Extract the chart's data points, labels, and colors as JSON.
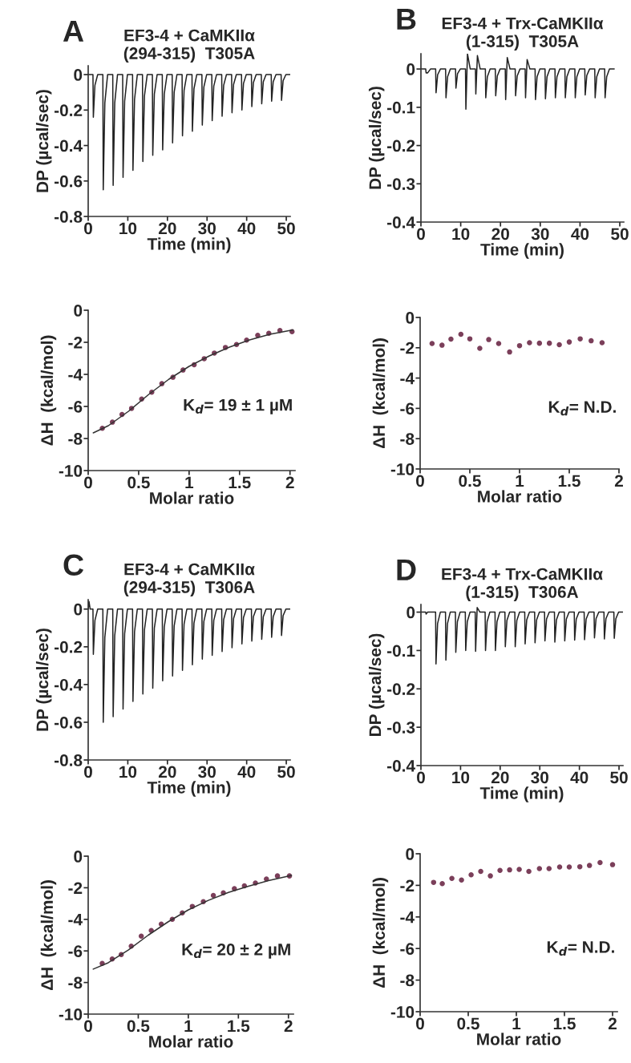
{
  "chart_data": [
    {
      "type": "line",
      "title": "EF3-4 + CaMKIIα\n(294-315)  T305A",
      "xlabel": "Time (min)",
      "ylabel": "DP (µcal/sec)",
      "annotations": [
        "A"
      ],
      "xlim": [
        0,
        51
      ],
      "ylim": [
        -0.8,
        0.05
      ],
      "xticks": [
        0,
        10,
        20,
        30,
        40,
        50
      ],
      "yticks": [
        0,
        -0.2,
        -0.4,
        -0.6,
        -0.8
      ],
      "series": [
        {
          "color": "#222222",
          "x": [
            0,
            1.2,
            1.3,
            1.7,
            2.4,
            3.7,
            3.8,
            4.2,
            4.9,
            6.2,
            6.3,
            6.7,
            7.4,
            8.7,
            8.8,
            9.2,
            9.9,
            11.2,
            11.3,
            11.7,
            12.4,
            13.7,
            13.8,
            14.2,
            14.9,
            16.2,
            16.3,
            16.7,
            17.4,
            18.7,
            18.8,
            19.2,
            19.9,
            21.2,
            21.3,
            21.7,
            22.4,
            23.7,
            23.8,
            24.2,
            24.9,
            26.2,
            26.3,
            26.7,
            27.4,
            28.7,
            28.8,
            29.2,
            29.9,
            31.2,
            31.3,
            31.7,
            32.4,
            33.7,
            33.8,
            34.2,
            34.9,
            36.2,
            36.3,
            36.7,
            37.4,
            38.7,
            38.8,
            39.2,
            39.9,
            41.2,
            41.3,
            41.7,
            42.4,
            43.7,
            43.8,
            44.2,
            44.9,
            46.2,
            46.3,
            46.7,
            47.4,
            48.7,
            48.8,
            49.2,
            49.9,
            51
          ],
          "values": [
            0,
            0,
            -0.24,
            -0.06,
            0,
            0,
            -0.65,
            -0.16,
            0,
            0,
            -0.625,
            -0.16,
            0,
            0,
            -0.58,
            -0.15,
            0,
            0,
            -0.54,
            -0.14,
            0,
            0,
            -0.49,
            -0.12,
            0,
            0,
            -0.455,
            -0.11,
            0,
            0,
            -0.425,
            -0.11,
            0,
            0,
            -0.385,
            -0.1,
            0,
            0,
            -0.345,
            -0.09,
            0,
            0,
            -0.32,
            -0.08,
            0,
            0,
            -0.285,
            -0.07,
            0,
            0,
            -0.26,
            -0.065,
            0,
            0,
            -0.235,
            -0.06,
            0,
            0,
            -0.215,
            -0.055,
            0,
            0,
            -0.2,
            -0.05,
            0,
            0,
            -0.18,
            -0.045,
            0,
            0,
            -0.165,
            -0.04,
            0,
            0,
            -0.15,
            -0.04,
            0,
            0,
            -0.145,
            -0.035,
            0,
            0
          ]
        }
      ]
    },
    {
      "type": "line",
      "title": "EF3-4 + Trx-CaMKIIα\n(1-315)  T305A",
      "xlabel": "Time (min)",
      "ylabel": "DP (µcal/sec)",
      "annotations": [
        "B"
      ],
      "xlim": [
        0,
        51
      ],
      "ylim": [
        -0.4,
        0.04
      ],
      "xticks": [
        0,
        10,
        20,
        30,
        40,
        50
      ],
      "yticks": [
        0,
        -0.1,
        -0.2,
        -0.3,
        -0.4
      ],
      "series": [
        {
          "color": "#222222",
          "x": [
            0,
            1.2,
            1.3,
            1.7,
            2.4,
            3.7,
            3.8,
            4.2,
            4.9,
            6.2,
            6.3,
            6.7,
            7.4,
            8.7,
            8.8,
            9.2,
            9.9,
            11.2,
            11.3,
            11.7,
            12.4,
            13.7,
            13.8,
            14.2,
            14.9,
            16.2,
            16.3,
            16.7,
            17.4,
            18.7,
            18.8,
            19.2,
            19.9,
            21.2,
            21.3,
            21.7,
            22.4,
            23.7,
            23.8,
            24.2,
            24.9,
            26.2,
            26.3,
            26.7,
            27.4,
            28.7,
            28.8,
            29.2,
            29.9,
            31.2,
            31.3,
            31.7,
            32.4,
            33.7,
            33.8,
            34.2,
            34.9,
            36.2,
            36.3,
            36.7,
            37.4,
            38.7,
            38.8,
            39.2,
            39.9,
            41.2,
            41.3,
            41.7,
            42.4,
            43.7,
            43.8,
            44.2,
            44.9,
            46.2,
            46.3,
            46.7,
            47.4,
            48.6
          ],
          "values": [
            0,
            0,
            -0.01,
            -0.01,
            0,
            0,
            -0.062,
            -0.015,
            0,
            0,
            -0.075,
            -0.02,
            0,
            0,
            -0.05,
            -0.012,
            0,
            0,
            -0.105,
            0.04,
            0,
            0,
            -0.065,
            0.035,
            0,
            0,
            -0.075,
            -0.02,
            0,
            0,
            -0.07,
            -0.018,
            0,
            0,
            -0.08,
            0.03,
            0,
            0,
            -0.07,
            -0.018,
            0,
            0,
            -0.075,
            0.025,
            0,
            0,
            -0.08,
            -0.02,
            0,
            0,
            -0.078,
            -0.02,
            0,
            0,
            -0.075,
            -0.02,
            0,
            0,
            -0.075,
            -0.02,
            0,
            0,
            -0.075,
            -0.02,
            0,
            0,
            -0.068,
            -0.017,
            0,
            0,
            -0.075,
            -0.02,
            0,
            0,
            -0.075,
            -0.02,
            0,
            0
          ]
        }
      ]
    },
    {
      "type": "line",
      "xlabel": "Molar ratio",
      "ylabel": "ΔH  (kcal/mol)",
      "annotations": [
        "K$_{d}$= 19 ± 1 µM"
      ],
      "xlim": [
        0,
        2.05
      ],
      "ylim": [
        -10,
        0
      ],
      "xticks": [
        0,
        0.5,
        1,
        1.5,
        2
      ],
      "yticks": [
        0,
        -2,
        -4,
        -6,
        -8,
        -10
      ],
      "series": [
        {
          "type": "scatter",
          "marker": "circle",
          "color": "#7b3f5a",
          "x": [
            0.14,
            0.24,
            0.335,
            0.43,
            0.53,
            0.63,
            0.73,
            0.84,
            0.94,
            1.05,
            1.15,
            1.25,
            1.36,
            1.47,
            1.57,
            1.68,
            1.79,
            1.9,
            2.02
          ],
          "values": [
            -7.36,
            -6.98,
            -6.5,
            -6.12,
            -5.54,
            -5.11,
            -4.58,
            -4.18,
            -3.73,
            -3.4,
            -3.02,
            -2.67,
            -2.32,
            -2.14,
            -1.86,
            -1.56,
            -1.44,
            -1.26,
            -1.34
          ]
        },
        {
          "type": "line",
          "color": "#333333",
          "x": [
            0.05,
            0.2,
            0.4,
            0.6,
            0.8,
            1.0,
            1.2,
            1.4,
            1.6,
            1.8,
            2.03
          ],
          "values": [
            -7.65,
            -7.2,
            -6.3,
            -5.25,
            -4.3,
            -3.5,
            -2.85,
            -2.3,
            -1.85,
            -1.5,
            -1.22
          ]
        }
      ]
    },
    {
      "type": "scatter",
      "xlabel": "Molar ratio",
      "ylabel": "ΔH  (kcal/mol)",
      "annotations": [
        "K$_{d}$= N.D."
      ],
      "xlim": [
        0,
        2
      ],
      "ylim": [
        -10,
        0
      ],
      "xticks": [
        0,
        0.5,
        1,
        1.5,
        2
      ],
      "yticks": [
        0,
        -2,
        -4,
        -6,
        -8,
        -10
      ],
      "marker": "circle",
      "series": [
        {
          "color": "#7b3f5a",
          "x": [
            0.12,
            0.22,
            0.31,
            0.41,
            0.5,
            0.6,
            0.69,
            0.79,
            0.9,
            1.0,
            1.1,
            1.2,
            1.3,
            1.4,
            1.5,
            1.61,
            1.72,
            1.83
          ],
          "values": [
            -1.72,
            -1.83,
            -1.43,
            -1.11,
            -1.41,
            -2.04,
            -1.46,
            -1.72,
            -2.28,
            -1.86,
            -1.67,
            -1.7,
            -1.7,
            -1.8,
            -1.62,
            -1.41,
            -1.54,
            -1.67
          ]
        }
      ]
    },
    {
      "type": "line",
      "title": "EF3-4 + CaMKIIα\n(294-315)  T306A",
      "xlabel": "Time (min)",
      "ylabel": "DP (µcal/sec)",
      "annotations": [
        "C"
      ],
      "xlim": [
        0,
        51
      ],
      "ylim": [
        -0.8,
        0.05
      ],
      "xticks": [
        0,
        10,
        20,
        30,
        40,
        50
      ],
      "yticks": [
        0,
        -0.2,
        -0.4,
        -0.6,
        -0.8
      ],
      "series": [
        {
          "color": "#222222",
          "x": [
            0,
            0.2,
            0.5,
            1.2,
            1.3,
            1.7,
            2.4,
            3.7,
            3.8,
            4.2,
            4.9,
            6.2,
            6.3,
            6.7,
            7.4,
            8.7,
            8.8,
            9.2,
            9.9,
            11.2,
            11.3,
            11.7,
            12.4,
            13.7,
            13.8,
            14.2,
            14.9,
            16.2,
            16.3,
            16.7,
            17.4,
            18.7,
            18.8,
            19.2,
            19.9,
            21.2,
            21.3,
            21.7,
            22.4,
            23.7,
            23.8,
            24.2,
            24.9,
            26.2,
            26.3,
            26.7,
            27.4,
            28.7,
            28.8,
            29.2,
            29.9,
            31.2,
            31.3,
            31.7,
            32.4,
            33.7,
            33.8,
            34.2,
            34.9,
            36.2,
            36.3,
            36.7,
            37.4,
            38.7,
            38.8,
            39.2,
            39.9,
            41.2,
            41.3,
            41.7,
            42.4,
            43.7,
            43.8,
            44.2,
            44.9,
            46.2,
            46.3,
            46.7,
            47.4,
            48.7,
            48.8,
            49.2,
            49.9,
            51
          ],
          "values": [
            0,
            0.04,
            0,
            0,
            -0.24,
            -0.06,
            0,
            0,
            -0.6,
            -0.15,
            0,
            0,
            -0.57,
            -0.14,
            0,
            0,
            -0.53,
            -0.13,
            0,
            0,
            -0.49,
            -0.12,
            0,
            0,
            -0.45,
            -0.11,
            0,
            0,
            -0.42,
            -0.1,
            0,
            0,
            -0.38,
            -0.095,
            0,
            0,
            -0.355,
            -0.09,
            0,
            0,
            -0.325,
            -0.08,
            0,
            0,
            -0.295,
            -0.075,
            0,
            0,
            -0.265,
            -0.065,
            0,
            0,
            -0.245,
            -0.06,
            0,
            0,
            -0.225,
            -0.055,
            0,
            0,
            -0.205,
            -0.05,
            0,
            0,
            -0.185,
            -0.045,
            0,
            0,
            -0.17,
            -0.04,
            0,
            0,
            -0.16,
            -0.04,
            0,
            0,
            -0.15,
            -0.04,
            0,
            0,
            -0.14,
            -0.035,
            0,
            0
          ]
        }
      ]
    },
    {
      "type": "line",
      "title": "EF3-4 + Trx-CaMKIIα\n(1-315)  T306A",
      "xlabel": "Time (min)",
      "ylabel": "DP (µcal/sec)",
      "annotations": [
        "D"
      ],
      "xlim": [
        0,
        51
      ],
      "ylim": [
        -0.4,
        0.02
      ],
      "xticks": [
        0,
        10,
        20,
        30,
        40,
        50
      ],
      "yticks": [
        0,
        -0.1,
        -0.2,
        -0.3,
        -0.4
      ],
      "series": [
        {
          "color": "#222222",
          "x": [
            0,
            1.2,
            1.3,
            1.7,
            2.4,
            3.7,
            3.8,
            4.2,
            4.9,
            6.2,
            6.3,
            6.7,
            7.4,
            8.7,
            8.8,
            9.2,
            9.9,
            11.2,
            11.3,
            11.7,
            12.4,
            13.7,
            13.8,
            14.2,
            14.9,
            16.2,
            16.3,
            16.7,
            17.4,
            18.7,
            18.8,
            19.2,
            19.9,
            21.2,
            21.3,
            21.7,
            22.4,
            23.7,
            23.8,
            24.2,
            24.9,
            26.2,
            26.3,
            26.7,
            27.4,
            28.7,
            28.8,
            29.2,
            29.9,
            31.2,
            31.3,
            31.7,
            32.4,
            33.7,
            33.8,
            34.2,
            34.9,
            36.2,
            36.3,
            36.7,
            37.4,
            38.7,
            38.8,
            39.2,
            39.9,
            41.2,
            41.3,
            41.7,
            42.4,
            43.7,
            43.8,
            44.2,
            44.9,
            46.2,
            46.3,
            46.7,
            47.4,
            48.7,
            48.8,
            49.2,
            49.9,
            51
          ],
          "values": [
            0,
            0,
            -0.005,
            0,
            0,
            0,
            -0.135,
            -0.03,
            0,
            0,
            -0.125,
            -0.03,
            0,
            0,
            -0.105,
            -0.025,
            0,
            0,
            -0.1,
            -0.025,
            0,
            0,
            -0.102,
            0.012,
            0,
            0,
            -0.1,
            -0.025,
            0,
            0,
            -0.1,
            -0.025,
            0,
            0,
            -0.09,
            -0.022,
            0,
            0,
            -0.09,
            -0.022,
            0,
            0,
            -0.083,
            -0.02,
            0,
            0,
            -0.08,
            -0.02,
            0,
            0,
            -0.075,
            -0.018,
            0,
            0,
            -0.078,
            -0.02,
            0,
            0,
            -0.075,
            -0.018,
            0,
            0,
            -0.073,
            -0.018,
            0,
            0,
            -0.072,
            -0.018,
            0,
            0,
            -0.067,
            -0.017,
            0,
            0,
            -0.07,
            -0.017,
            0,
            0,
            -0.068,
            -0.017,
            0,
            0
          ]
        }
      ]
    },
    {
      "type": "line",
      "xlabel": "Molar ratio",
      "ylabel": "ΔH  (kcal/mol)",
      "annotations": [
        "K$_{d}$= 20 ± 2 µM"
      ],
      "xlim": [
        0,
        2.05
      ],
      "ylim": [
        -10,
        0
      ],
      "xticks": [
        0,
        0.5,
        1,
        1.5,
        2
      ],
      "yticks": [
        0,
        -2,
        -4,
        -6,
        -8,
        -10
      ],
      "series": [
        {
          "type": "scatter",
          "marker": "circle",
          "color": "#7b3f5a",
          "x": [
            0.14,
            0.24,
            0.33,
            0.43,
            0.53,
            0.63,
            0.73,
            0.84,
            0.94,
            1.04,
            1.15,
            1.25,
            1.35,
            1.46,
            1.56,
            1.67,
            1.78,
            1.89,
            2.01
          ],
          "values": [
            -6.79,
            -6.51,
            -6.23,
            -5.7,
            -5.06,
            -4.71,
            -4.3,
            -4.0,
            -3.59,
            -3.18,
            -2.88,
            -2.49,
            -2.32,
            -2.06,
            -1.88,
            -1.7,
            -1.45,
            -1.25,
            -1.25
          ]
        },
        {
          "type": "line",
          "color": "#333333",
          "x": [
            0.05,
            0.2,
            0.4,
            0.6,
            0.8,
            1.0,
            1.2,
            1.4,
            1.6,
            1.8,
            2.03
          ],
          "values": [
            -7.15,
            -6.75,
            -5.95,
            -5.0,
            -4.15,
            -3.4,
            -2.8,
            -2.3,
            -1.9,
            -1.55,
            -1.22
          ]
        }
      ]
    },
    {
      "type": "scatter",
      "xlabel": "Molar ratio",
      "ylabel": "ΔH  (kcal/mol)",
      "annotations": [
        "K$_{d}$= N.D."
      ],
      "xlim": [
        0,
        2.05
      ],
      "ylim": [
        -10,
        0
      ],
      "xticks": [
        0,
        0.5,
        1,
        1.5,
        2
      ],
      "yticks": [
        0,
        -2,
        -4,
        -6,
        -8,
        -10
      ],
      "marker": "circle",
      "series": [
        {
          "color": "#7b3f5a",
          "x": [
            0.14,
            0.23,
            0.33,
            0.43,
            0.53,
            0.63,
            0.73,
            0.83,
            0.93,
            1.03,
            1.13,
            1.24,
            1.34,
            1.45,
            1.55,
            1.66,
            1.76,
            1.87,
            2.0
          ],
          "values": [
            -1.81,
            -1.89,
            -1.56,
            -1.66,
            -1.33,
            -1.12,
            -1.4,
            -1.05,
            -1.02,
            -0.99,
            -1.12,
            -0.94,
            -0.94,
            -0.84,
            -0.84,
            -0.82,
            -0.74,
            -0.56,
            -0.69
          ]
        }
      ]
    }
  ]
}
